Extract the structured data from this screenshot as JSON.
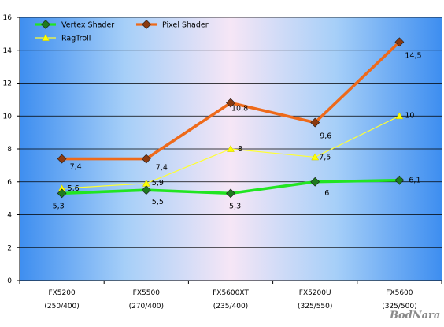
{
  "chart_data": {
    "type": "line",
    "categories": [
      [
        "FX5200",
        "(250/400)"
      ],
      [
        "FX5500",
        "(270/400)"
      ],
      [
        "FX5600XT",
        "(235/400)"
      ],
      [
        "FX5200U",
        "(325/550)"
      ],
      [
        "FX5600",
        "(325/500)"
      ]
    ],
    "series": [
      {
        "name": "Vertex Shader",
        "values": [
          5.3,
          5.5,
          5.3,
          6.0,
          6.1
        ],
        "labels": [
          "5,3",
          "5,5",
          "5,3",
          "6",
          "6,1"
        ],
        "color": "#22e522",
        "marker": "diamond",
        "marker_color": "#1f7a1f"
      },
      {
        "name": "Pixel Shader",
        "values": [
          7.4,
          7.4,
          10.8,
          9.6,
          14.5
        ],
        "labels": [
          "7,4",
          "7,4",
          "10,8",
          "9,6",
          "14,5"
        ],
        "color": "#ee6a1a",
        "marker": "diamond",
        "marker_color": "#8b3a10"
      },
      {
        "name": "RagTroll",
        "values": [
          5.6,
          5.9,
          8.0,
          7.5,
          10.0
        ],
        "labels": [
          "5,6",
          "5,9",
          "8",
          "7,5",
          "10"
        ],
        "color": "#ffff33",
        "marker": "triangle",
        "marker_color": "#ffff00"
      }
    ],
    "yticks": [
      "0",
      "2",
      "4",
      "6",
      "8",
      "10",
      "12",
      "14",
      "16"
    ],
    "ylim": [
      0,
      16
    ],
    "grid": true,
    "legend_position": "top-left",
    "title": "",
    "xlabel": "",
    "ylabel": ""
  },
  "watermark": "BodNara"
}
